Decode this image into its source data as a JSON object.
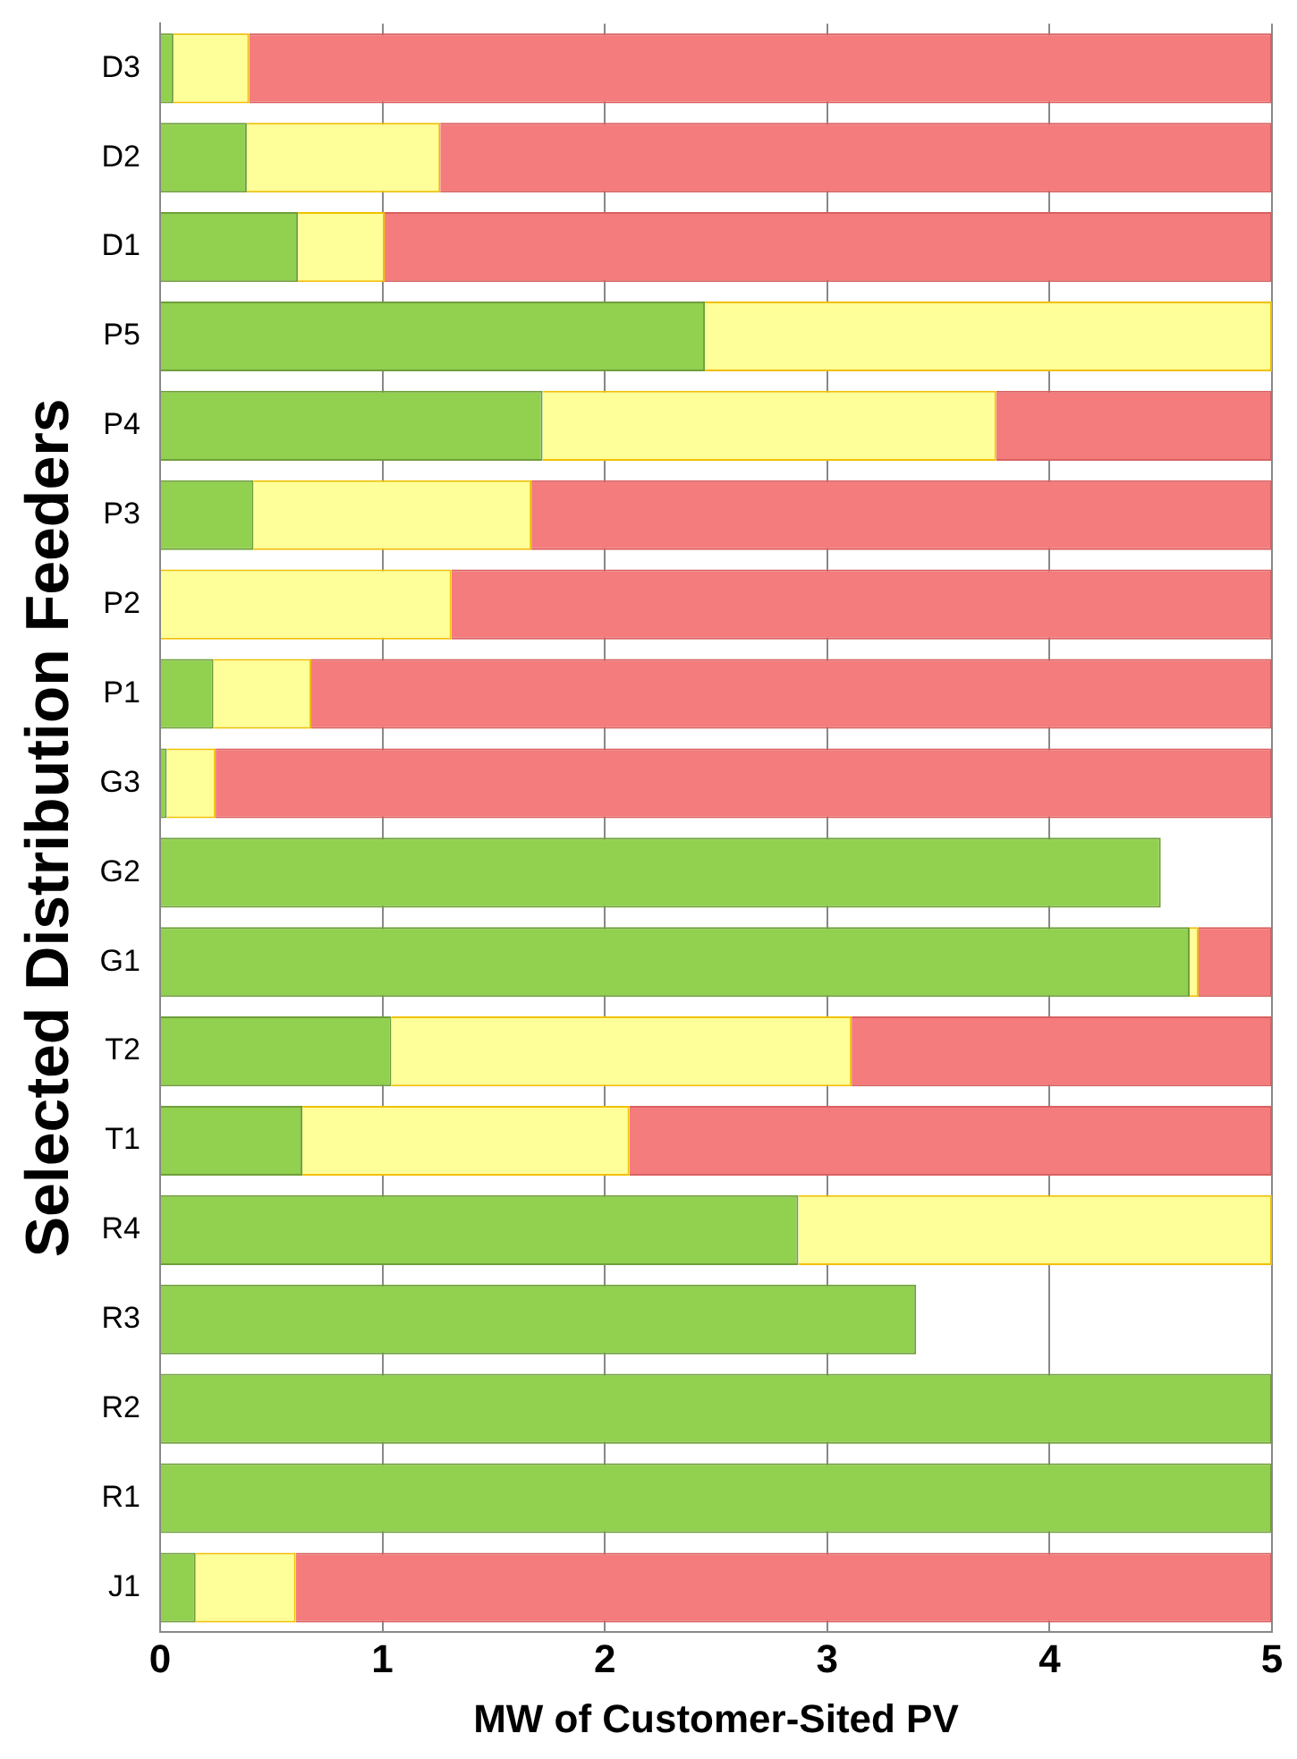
{
  "chart_data": {
    "type": "bar",
    "orientation": "horizontal",
    "stacked": true,
    "xlabel": "MW of Customer-Sited PV",
    "ylabel": "Selected Distribution Feeders",
    "categories": [
      "D3",
      "D2",
      "D1",
      "P5",
      "P4",
      "P3",
      "P2",
      "P1",
      "G3",
      "G2",
      "G1",
      "T2",
      "T1",
      "R4",
      "R3",
      "R2",
      "R1",
      "J1"
    ],
    "series": [
      {
        "color": "#92d050",
        "values": [
          0.06,
          0.39,
          0.62,
          2.45,
          1.72,
          0.42,
          null,
          0.24,
          0.03,
          4.5,
          4.63,
          1.04,
          0.64,
          2.87,
          3.4,
          5,
          5,
          0.16
        ]
      },
      {
        "color": "#ffff99",
        "values": [
          0.34,
          0.87,
          0.39,
          2.55,
          2.04,
          1.25,
          1.31,
          0.44,
          0.22,
          null,
          0.04,
          2.07,
          1.47,
          2.13,
          null,
          null,
          null,
          0.45
        ]
      },
      {
        "color": "#f47c7c",
        "values": [
          4.6,
          3.74,
          3.99,
          null,
          1.24,
          3.33,
          3.69,
          4.32,
          4.75,
          null,
          0.33,
          1.89,
          2.89,
          null,
          null,
          null,
          null,
          4.39
        ]
      }
    ],
    "xlim": [
      0,
      5
    ],
    "xticks": [
      0,
      1,
      2,
      3,
      4,
      5
    ],
    "grid": "x",
    "legend": false
  }
}
